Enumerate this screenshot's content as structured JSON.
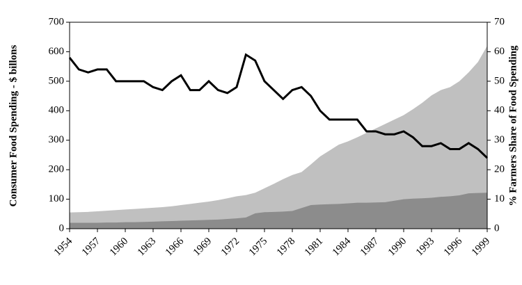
{
  "chart_data": {
    "type": "area-line",
    "y_label": "Consumer Food Spending - $ billons",
    "y2_label": "% Farmers Share of Food Spending",
    "x": [
      1954,
      1955,
      1956,
      1957,
      1958,
      1959,
      1960,
      1961,
      1962,
      1963,
      1964,
      1965,
      1966,
      1967,
      1968,
      1969,
      1970,
      1971,
      1972,
      1973,
      1974,
      1975,
      1976,
      1977,
      1978,
      1979,
      1980,
      1981,
      1982,
      1983,
      1984,
      1985,
      1986,
      1987,
      1988,
      1989,
      1990,
      1991,
      1992,
      1993,
      1994,
      1995,
      1996,
      1997,
      1998,
      1999
    ],
    "xlim": [
      1954,
      1999
    ],
    "xticks": [
      1954,
      1957,
      1960,
      1963,
      1966,
      1969,
      1972,
      1975,
      1978,
      1981,
      1984,
      1987,
      1990,
      1993,
      1996,
      1999
    ],
    "ylim": [
      0,
      700
    ],
    "yticks": [
      0,
      100,
      200,
      300,
      400,
      500,
      600,
      700
    ],
    "y2lim": [
      0,
      70
    ],
    "y2ticks": [
      0,
      10,
      20,
      30,
      40,
      50,
      60,
      70
    ],
    "grid": false,
    "series": [
      {
        "type": "area",
        "color": "#c0c0c0",
        "values": [
          55,
          56,
          57,
          59,
          61,
          63,
          65,
          67,
          69,
          71,
          73,
          76,
          80,
          84,
          88,
          92,
          97,
          103,
          110,
          114,
          122,
          137,
          152,
          168,
          182,
          192,
          218,
          245,
          265,
          285,
          296,
          310,
          325,
          340,
          355,
          370,
          385,
          405,
          427,
          452,
          470,
          480,
          500,
          530,
          565,
          620
        ]
      },
      {
        "type": "area",
        "color": "#8c8c8c",
        "values": [
          20,
          20,
          20,
          20,
          21,
          21,
          22,
          22,
          23,
          24,
          25,
          26,
          27,
          28,
          29,
          30,
          31,
          33,
          35,
          38,
          52,
          56,
          57,
          58,
          60,
          70,
          80,
          82,
          83,
          84,
          86,
          88,
          88,
          89,
          90,
          95,
          100,
          102,
          103,
          105,
          108,
          110,
          113,
          120,
          121,
          122
        ]
      },
      {
        "type": "line",
        "axis": "y2",
        "color": "#000000",
        "values": [
          58,
          54,
          53,
          54,
          54,
          50,
          50,
          50,
          50,
          48,
          47,
          50,
          52,
          47,
          47,
          50,
          47,
          46,
          48,
          59,
          57,
          50,
          47,
          44,
          47,
          48,
          45,
          40,
          37,
          37,
          37,
          37,
          33,
          33,
          32,
          32,
          33,
          31,
          28,
          28,
          29,
          27,
          27,
          29,
          27,
          24
        ]
      }
    ]
  }
}
